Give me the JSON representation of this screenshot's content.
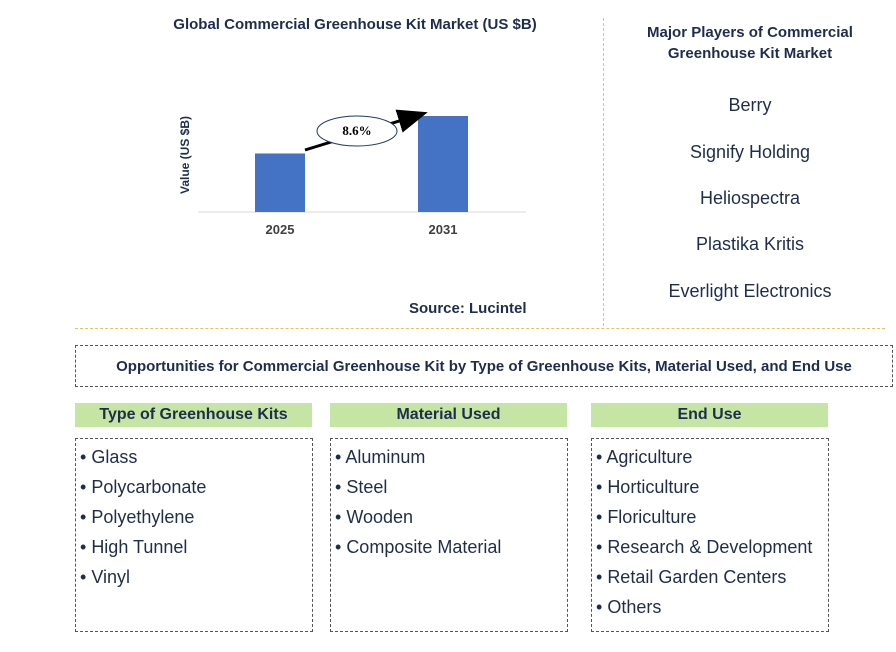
{
  "chart_data": {
    "type": "bar",
    "title": "Global Commercial Greenhouse Kit Market (US $B)",
    "ylabel": "Value (US $B)",
    "categories": [
      "2025",
      "2031"
    ],
    "values": [
      1.0,
      1.64
    ],
    "cagr_label": "8.6%",
    "bar_color": "#4472c4",
    "grid": false
  },
  "source": "Source: Lucintel",
  "players": {
    "title_line1": "Major Players of Commercial",
    "title_line2": "Greenhouse Kit Market",
    "items": [
      "Berry",
      "Signify Holding",
      "Heliospectra",
      "Plastika Kritis",
      "Everlight Electronics"
    ]
  },
  "opportunities": {
    "title": "Opportunities for Commercial Greenhouse Kit by Type of Greenhouse Kits, Material Used, and End Use",
    "header_color": "#c5e5a5",
    "columns": [
      {
        "header": "Type of Greenhouse Kits",
        "items": [
          "Glass",
          "Polycarbonate",
          "Polyethylene",
          "High Tunnel",
          "Vinyl"
        ]
      },
      {
        "header": "Material Used",
        "items": [
          "Aluminum",
          "Steel",
          "Wooden",
          "Composite Material"
        ]
      },
      {
        "header": "End Use",
        "items": [
          "Agriculture",
          "Horticulture",
          "Floriculture",
          "Research & Development",
          "Retail Garden Centers",
          "Others"
        ]
      }
    ]
  }
}
